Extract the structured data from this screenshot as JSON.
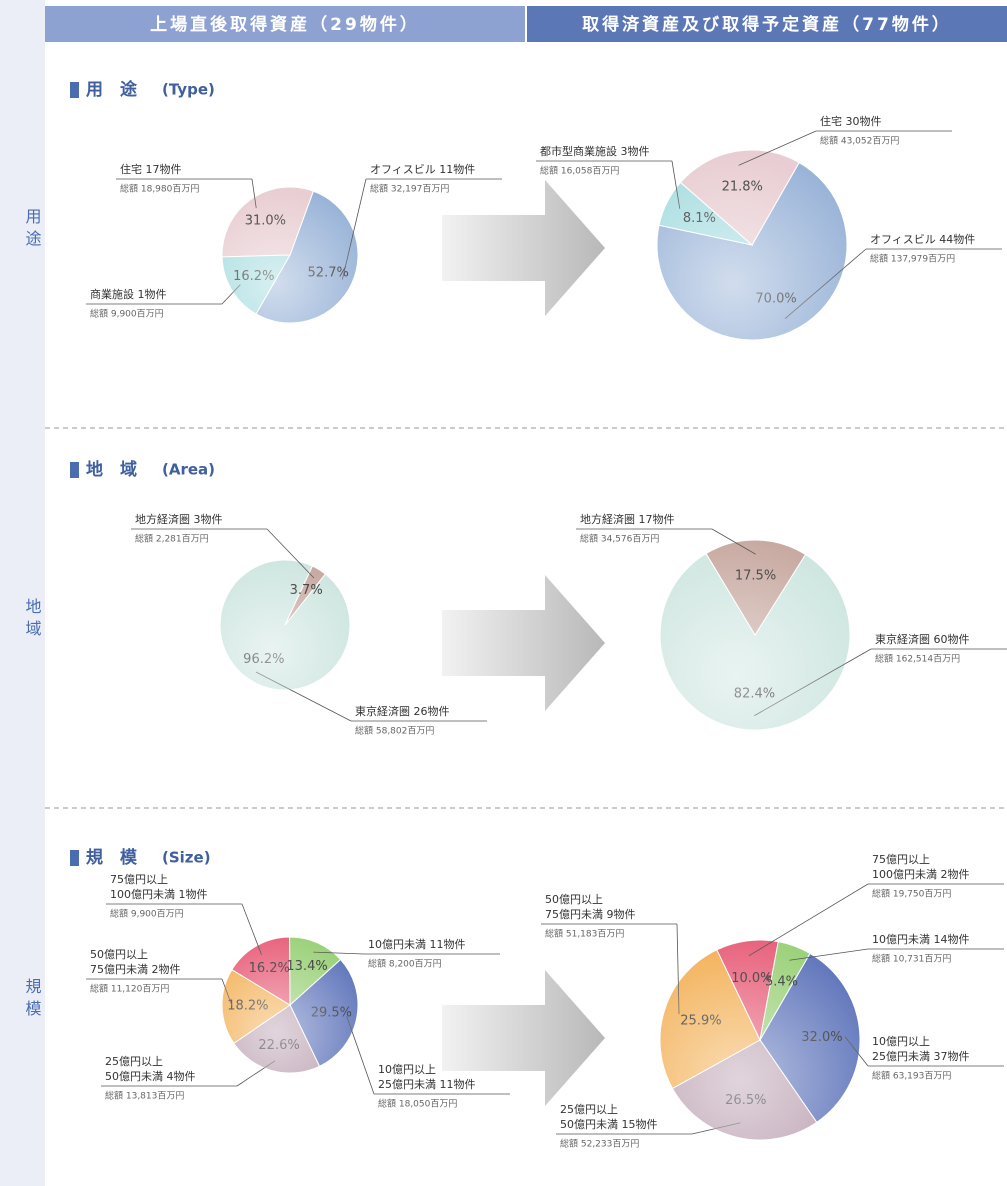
{
  "header": {
    "left": "上場直後取得資産（29物件）",
    "right": "取得済資産及び取得予定資産（77物件）"
  },
  "sections": [
    {
      "label": "用途",
      "title": "用　途",
      "title_en": "(Type)"
    },
    {
      "label": "地域",
      "title": "地　域",
      "title_en": "(Area)"
    },
    {
      "label": "規模",
      "title": "規　模",
      "title_en": "(Size)"
    }
  ],
  "chart_data": [
    {
      "type": "pie",
      "categories": [
        [
          "オフィスビル 11物件"
        ],
        [
          "住宅 17物件"
        ],
        [
          "商業施設 1物件"
        ]
      ],
      "amounts": [
        "総額 32,197百万円",
        "総額 18,980百万円",
        "総額 9,900百万円"
      ],
      "values": [
        52.7,
        31.0,
        16.2
      ],
      "value_labels": [
        "52.7%",
        "31.0%",
        "16.2%"
      ],
      "colors": [
        "#9ab4d8",
        "#e8cdd2",
        "#a8dde0"
      ]
    },
    {
      "type": "pie",
      "categories": [
        [
          "オフィスビル 44物件"
        ],
        [
          "住宅 30物件"
        ],
        [
          "都市型商業施設 3物件"
        ]
      ],
      "amounts": [
        "総額 137,979百万円",
        "総額 43,052百万円",
        "総額 16,058百万円"
      ],
      "values": [
        70.0,
        21.8,
        8.1
      ],
      "value_labels": [
        "70.0%",
        "21.8%",
        "8.1%"
      ],
      "colors": [
        "#9ab4d8",
        "#e8cdd2",
        "#a8dde0"
      ]
    },
    {
      "type": "pie",
      "categories": [
        [
          "東京経済圏 26物件"
        ],
        [
          "地方経済圏 3物件"
        ]
      ],
      "amounts": [
        "総額 58,802百万円",
        "総額 2,281百万円"
      ],
      "values": [
        96.2,
        3.7
      ],
      "value_labels": [
        "96.2%",
        "3.7%"
      ],
      "colors": [
        "#cfe6e0",
        "#c8aaa2"
      ]
    },
    {
      "type": "pie",
      "categories": [
        [
          "東京経済圏 60物件"
        ],
        [
          "地方経済圏 17物件"
        ]
      ],
      "amounts": [
        "総額 162,514百万円",
        "総額 34,576百万円"
      ],
      "values": [
        82.4,
        17.5
      ],
      "value_labels": [
        "82.4%",
        "17.5%"
      ],
      "colors": [
        "#cfe6e0",
        "#c8aaa2"
      ]
    },
    {
      "type": "pie",
      "categories": [
        [
          "10億円以上",
          "25億円未満 11物件"
        ],
        [
          "25億円以上",
          "50億円未満 4物件"
        ],
        [
          "50億円以上",
          "75億円未満 2物件"
        ],
        [
          "75億円以上",
          "100億円未満 1物件"
        ],
        [
          "10億円未満 11物件"
        ]
      ],
      "amounts": [
        "総額 18,050百万円",
        "総額 13,813百万円",
        "総額 11,120百万円",
        "総額 9,900百万円",
        "総額 8,200百万円"
      ],
      "values": [
        29.5,
        22.6,
        18.2,
        16.2,
        13.4
      ],
      "value_labels": [
        "29.5%",
        "22.6%",
        "18.2%",
        "16.2%",
        "13.4%"
      ],
      "colors": [
        "#6479bd",
        "#bca2b2",
        "#f3b25a",
        "#e8647e",
        "#9dd27c"
      ]
    },
    {
      "type": "pie",
      "categories": [
        [
          "10億円以上",
          "25億円未満 37物件"
        ],
        [
          "25億円以上",
          "50億円未満 15物件"
        ],
        [
          "50億円以上",
          "75億円未満 9物件"
        ],
        [
          "75億円以上",
          "100億円未満 2物件"
        ],
        [
          "10億円未満 14物件"
        ]
      ],
      "amounts": [
        "総額 63,193百万円",
        "総額 52,233百万円",
        "総額 51,183百万円",
        "総額 19,750百万円",
        "総額 10,731百万円"
      ],
      "values": [
        32.0,
        26.5,
        25.9,
        10.0,
        5.4
      ],
      "value_labels": [
        "32.0%",
        "26.5%",
        "25.9%",
        "10.0%",
        "5.4%"
      ],
      "colors": [
        "#6479bd",
        "#bca2b2",
        "#f3b25a",
        "#e8647e",
        "#9dd27c"
      ]
    }
  ]
}
